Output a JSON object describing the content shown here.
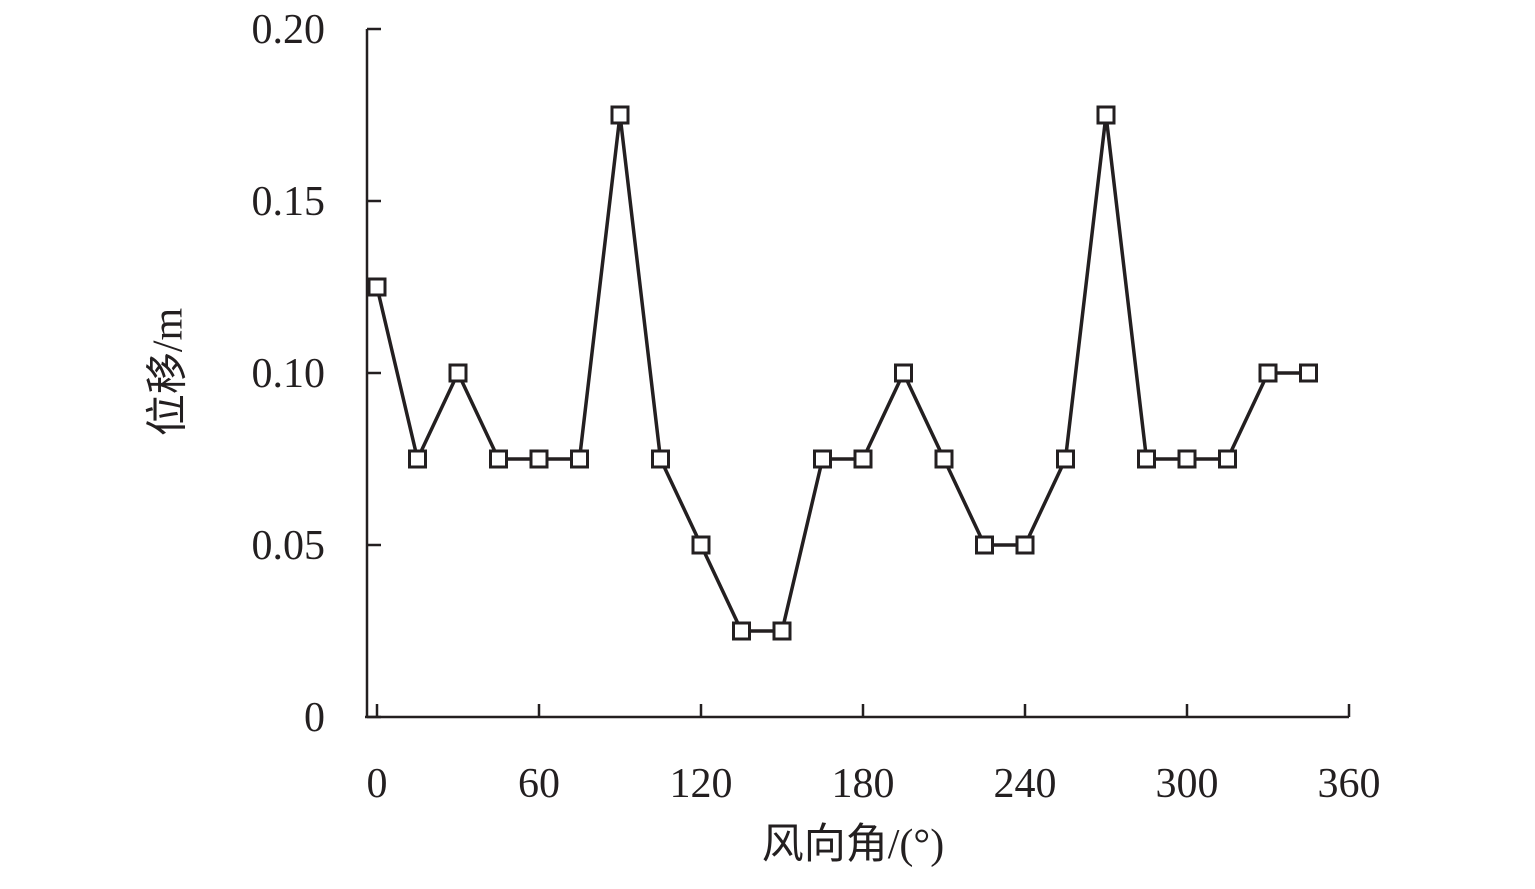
{
  "chart_data": {
    "type": "line",
    "x_label": "风向角/(°)",
    "y_label": "位移/m",
    "x": [
      0,
      15,
      30,
      45,
      60,
      75,
      90,
      105,
      120,
      135,
      150,
      165,
      180,
      195,
      210,
      225,
      240,
      255,
      270,
      285,
      300,
      315,
      330,
      345
    ],
    "series": [
      {
        "color": "#231f20",
        "marker": "square",
        "values": [
          0.125,
          0.075,
          0.1,
          0.075,
          0.075,
          0.075,
          0.175,
          0.075,
          0.05,
          0.025,
          0.025,
          0.075,
          0.075,
          0.1,
          0.075,
          0.05,
          0.05,
          0.075,
          0.175,
          0.075,
          0.075,
          0.075,
          0.1,
          0.1
        ]
      }
    ],
    "xlim": [
      0,
      360
    ],
    "xticks": [
      0,
      60,
      120,
      180,
      240,
      300,
      360
    ],
    "ylim": [
      0,
      0.2
    ],
    "yticks": [
      0,
      0.05,
      {
        "value": 0.1,
        "label": "0.10"
      },
      0.15,
      {
        "value": 0.2,
        "label": "0.20"
      }
    ],
    "grid": false
  }
}
